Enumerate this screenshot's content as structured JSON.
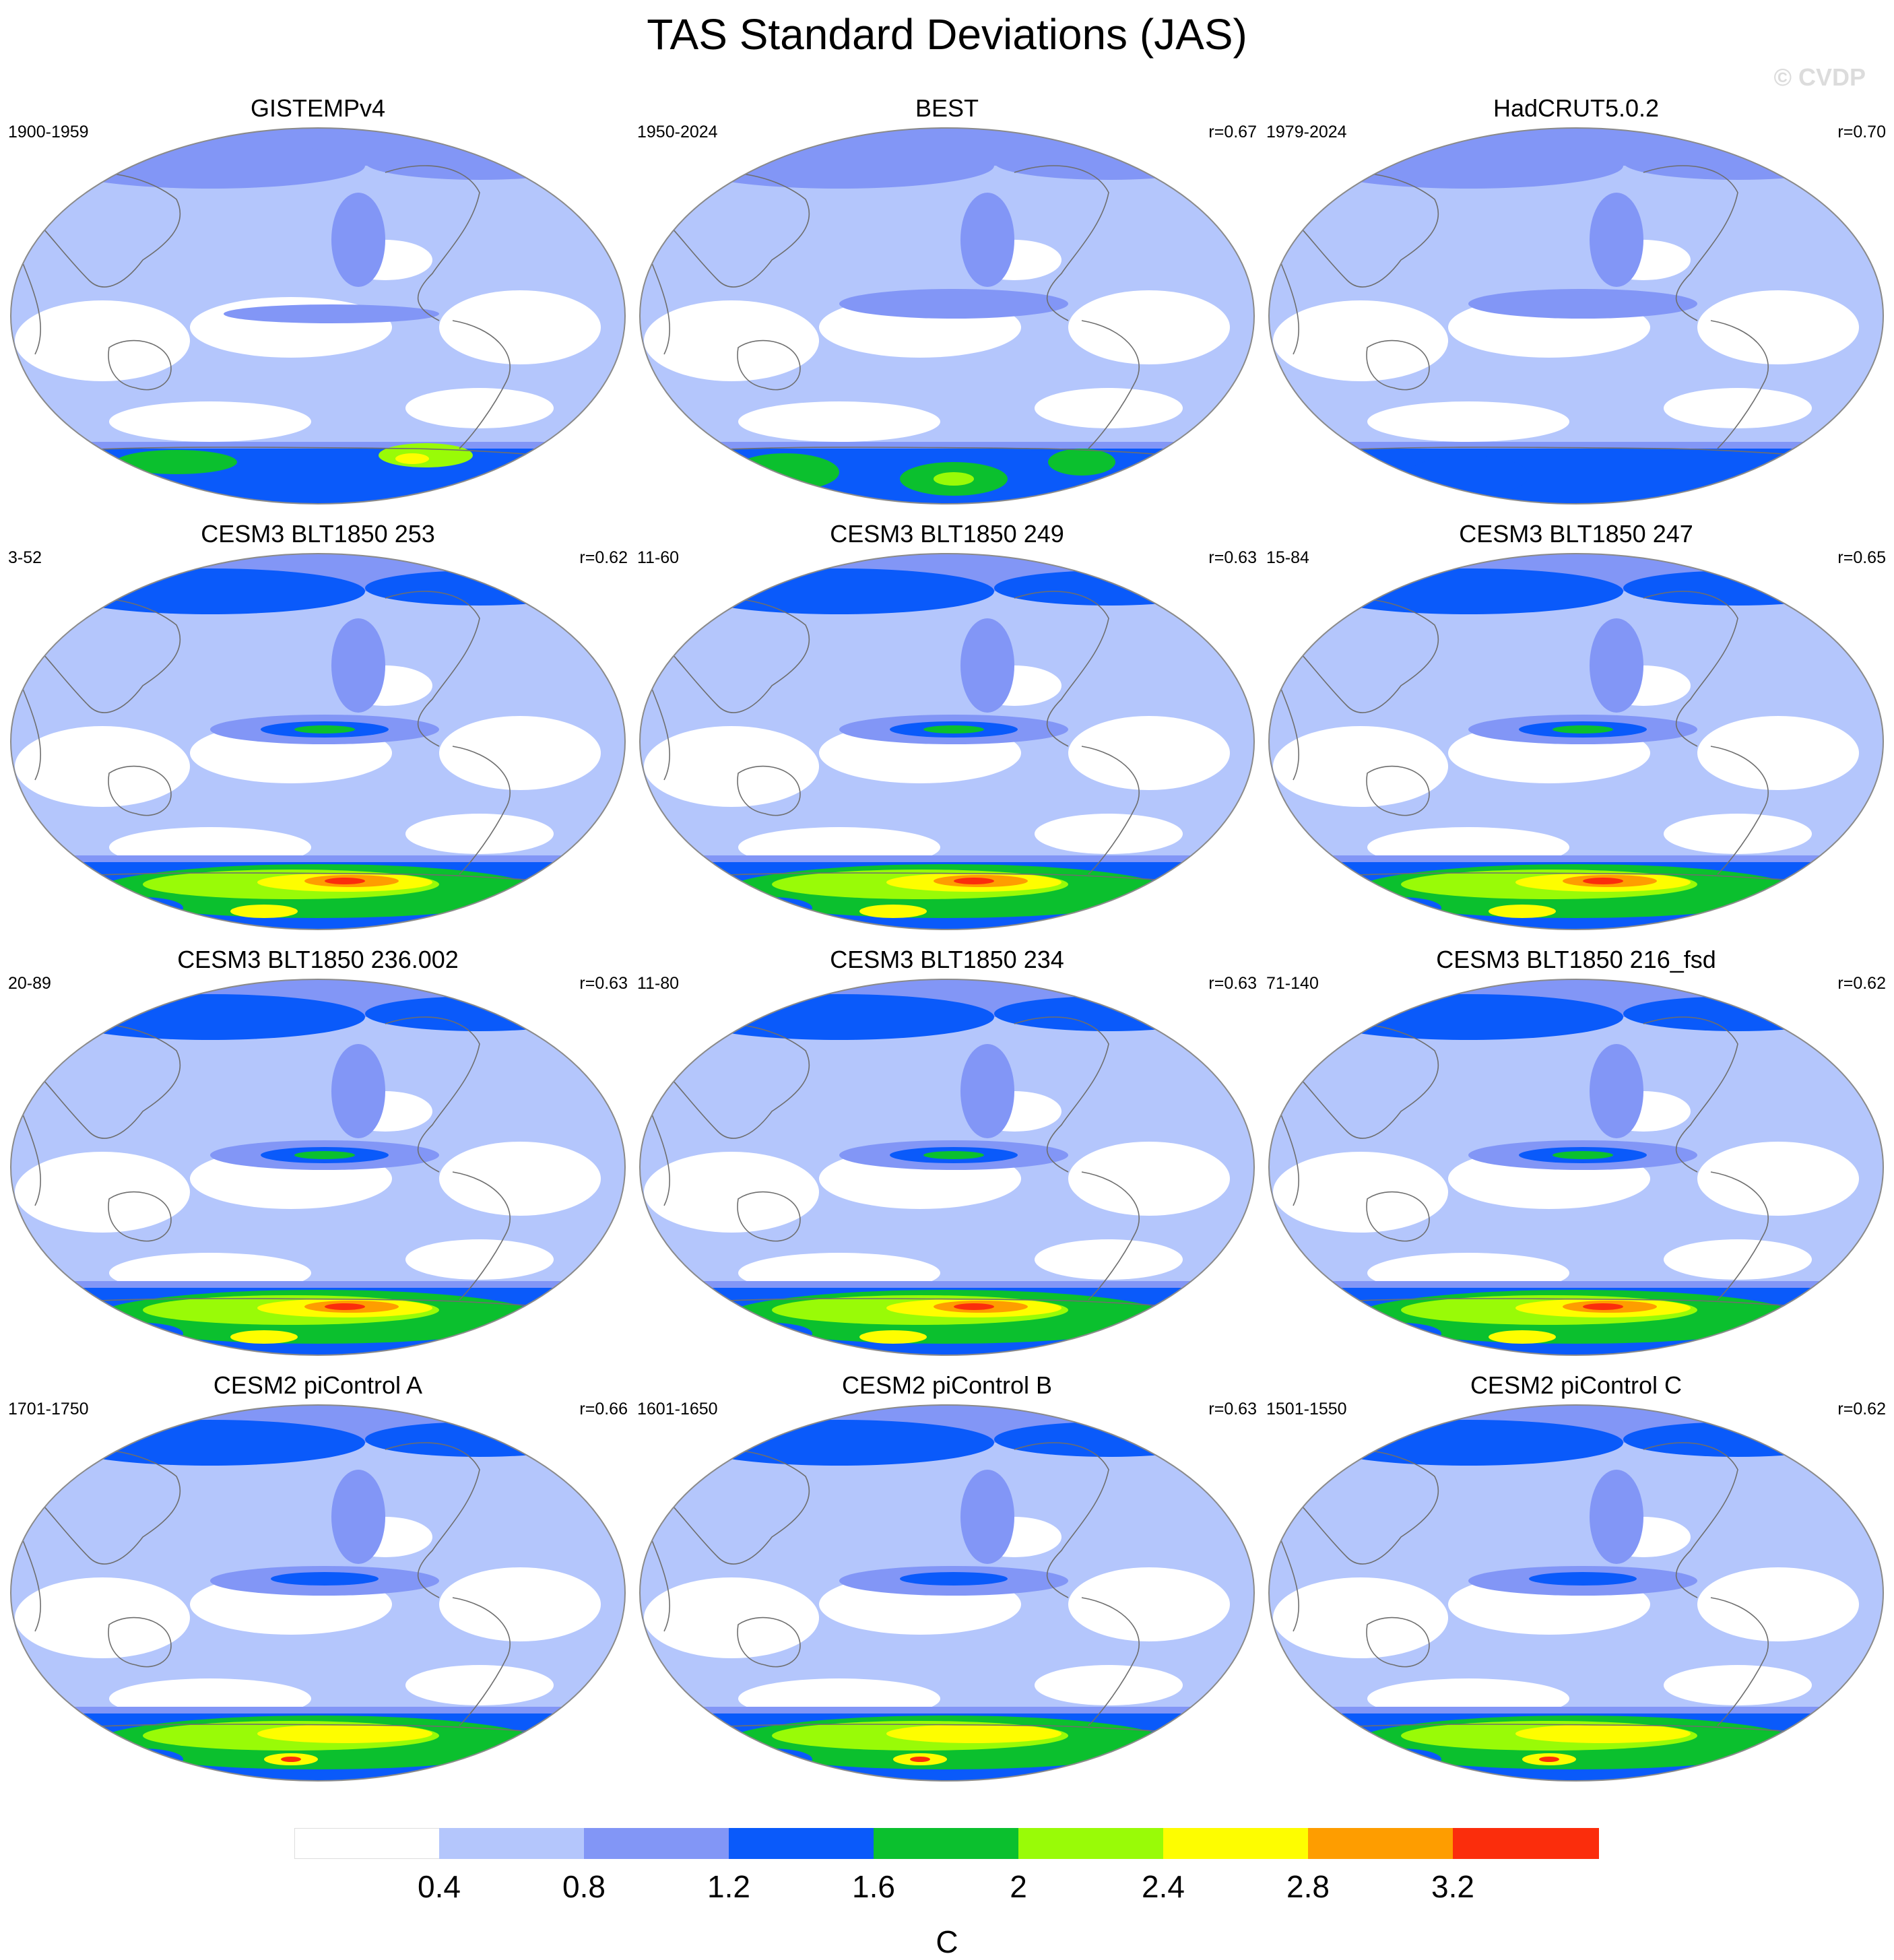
{
  "title": "TAS Standard Deviations (JAS)",
  "watermark": "© CVDP",
  "panels": [
    {
      "title": "GISTEMPv4",
      "period": "1900-1959",
      "corr": "",
      "kind": "obs-gistemp"
    },
    {
      "title": "BEST",
      "period": "1950-2024",
      "corr": "r=0.67",
      "kind": "obs-best"
    },
    {
      "title": "HadCRUT5.0.2",
      "period": "1979-2024",
      "corr": "r=0.70",
      "kind": "obs-hadcrut"
    },
    {
      "title": "CESM3 BLT1850 253",
      "period": "3-52",
      "corr": "r=0.62",
      "kind": "model"
    },
    {
      "title": "CESM3 BLT1850 249",
      "period": "11-60",
      "corr": "r=0.63",
      "kind": "model"
    },
    {
      "title": "CESM3 BLT1850 247",
      "period": "15-84",
      "corr": "r=0.65",
      "kind": "model"
    },
    {
      "title": "CESM3 BLT1850 236.002",
      "period": "20-89",
      "corr": "r=0.63",
      "kind": "model"
    },
    {
      "title": "CESM3 BLT1850 234",
      "period": "11-80",
      "corr": "r=0.63",
      "kind": "model"
    },
    {
      "title": "CESM3 BLT1850 216_fsd",
      "period": "71-140",
      "corr": "r=0.62",
      "kind": "model"
    },
    {
      "title": "CESM2 piControl A",
      "period": "1701-1750",
      "corr": "r=0.66",
      "kind": "cesm2"
    },
    {
      "title": "CESM2 piControl B",
      "period": "1601-1650",
      "corr": "r=0.63",
      "kind": "cesm2"
    },
    {
      "title": "CESM2 piControl C",
      "period": "1501-1550",
      "corr": "r=0.62",
      "kind": "cesm2"
    }
  ],
  "colorbar": {
    "levels": [
      "0.4",
      "0.8",
      "1.2",
      "1.6",
      "2",
      "2.4",
      "2.8",
      "3.2"
    ],
    "colors": [
      "#ffffff",
      "#b4c6fc",
      "#8296f6",
      "#0a5afa",
      "#0bc02e",
      "#99fb07",
      "#fefd00",
      "#fe9d00",
      "#fb2d0c"
    ],
    "units": "C"
  }
}
